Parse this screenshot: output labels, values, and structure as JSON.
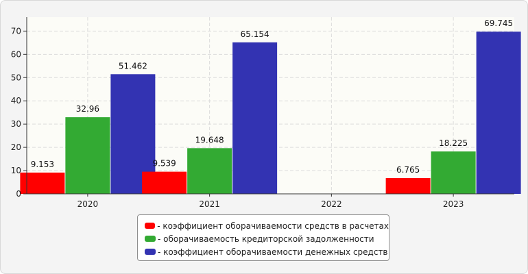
{
  "chart_data": {
    "type": "bar",
    "categories": [
      "2020",
      "2021",
      "2022",
      "2023"
    ],
    "series": [
      {
        "name": "- коэффициент оборачиваемости средств в расчетах",
        "color": "#ff0000",
        "values": [
          9.153,
          9.539,
          null,
          6.765
        ]
      },
      {
        "name": "- оборачиваемость кредиторской задолженности",
        "color": "#33aa33",
        "values": [
          32.96,
          19.648,
          null,
          18.225
        ]
      },
      {
        "name": "- коэффициент оборачиваемости денежных средств",
        "color": "#3333b2",
        "values": [
          51.462,
          65.154,
          null,
          69.745
        ]
      }
    ],
    "value_labels": [
      [
        "9.153",
        "9.539",
        null,
        "6.765"
      ],
      [
        "32.96",
        "19.648",
        null,
        "18.225"
      ],
      [
        "51.462",
        "65.154",
        null,
        "69.745"
      ]
    ],
    "yticks": [
      0,
      10,
      20,
      30,
      40,
      50,
      60,
      70
    ],
    "ylim": [
      0,
      76
    ],
    "grid": true,
    "legend_position": "bottom-center"
  }
}
